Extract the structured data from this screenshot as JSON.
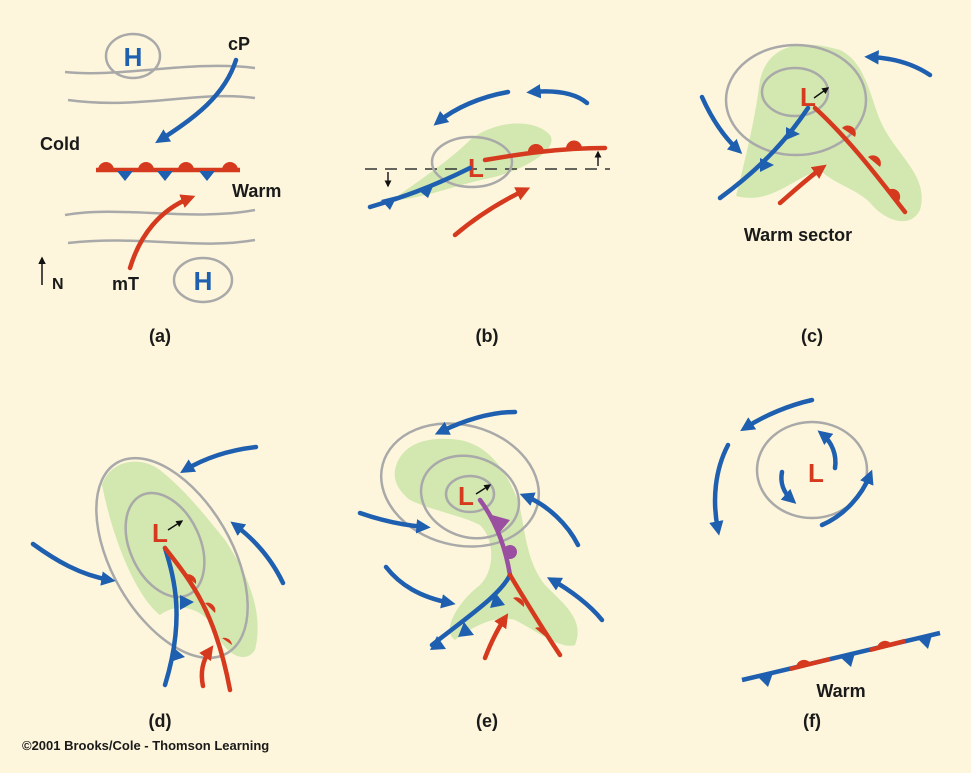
{
  "colors": {
    "background": "#fdf6dc",
    "cold": "#1f5fb0",
    "warm": "#d63a1e",
    "occluded": "#9a4fa0",
    "precipitation": "#d3e8b0",
    "isobar": "#a9a9a9"
  },
  "icons": [
    "north-arrow-icon",
    "cyclone-motion-arrow-icon"
  ],
  "panel_a": {
    "caption": "(a)",
    "high_label": "H",
    "cp_label": "cP",
    "cold_label": "Cold",
    "warm_label": "Warm",
    "mt_label": "mT",
    "north_label": "N"
  },
  "panel_b": {
    "caption": "(b)",
    "low_label": "L"
  },
  "panel_c": {
    "caption": "(c)",
    "low_label": "L",
    "sector_label": "Warm sector"
  },
  "panel_d": {
    "caption": "(d)",
    "low_label": "L"
  },
  "panel_e": {
    "caption": "(e)",
    "low_label": "L"
  },
  "panel_f": {
    "caption": "(f)",
    "low_label": "L",
    "warm_label": "Warm"
  },
  "credit": "©2001 Brooks/Cole - Thomson Learning"
}
